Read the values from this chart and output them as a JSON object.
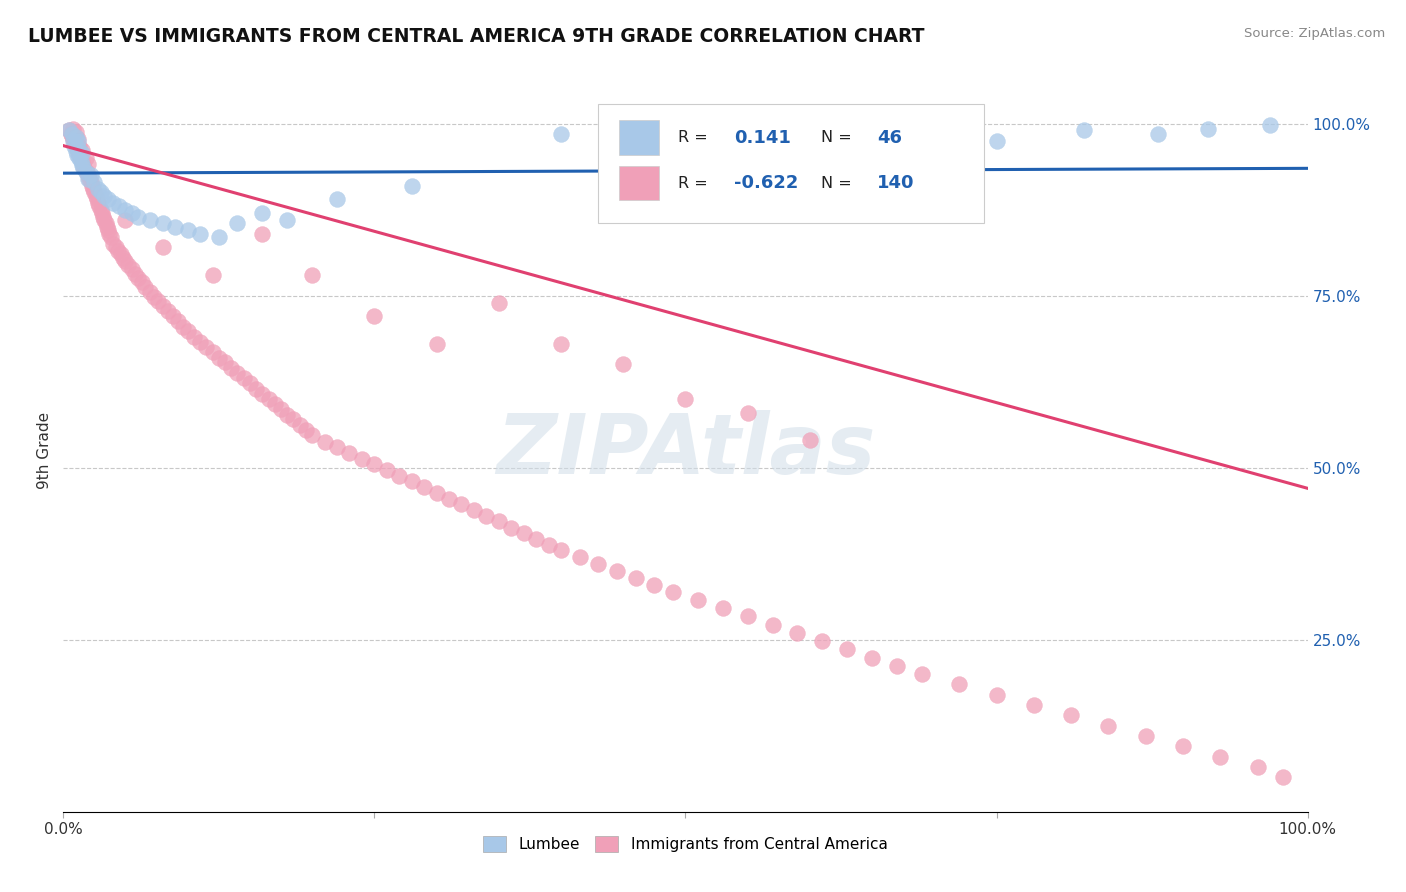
{
  "title": "LUMBEE VS IMMIGRANTS FROM CENTRAL AMERICA 9TH GRADE CORRELATION CHART",
  "source_text": "Source: ZipAtlas.com",
  "ylabel": "9th Grade",
  "xlim": [
    0.0,
    1.0
  ],
  "ylim": [
    0.0,
    1.05
  ],
  "lumbee_R": 0.141,
  "lumbee_N": 46,
  "ca_R": -0.622,
  "ca_N": 140,
  "lumbee_color": "#a8c8e8",
  "ca_color": "#f0a0b8",
  "lumbee_line_color": "#2060b0",
  "ca_line_color": "#e04070",
  "background_color": "#ffffff",
  "grid_color": "#c8c8c8",
  "watermark": "ZIPAtlas",
  "lumbee_trend_start": 0.928,
  "lumbee_trend_end": 0.935,
  "ca_trend_start": 0.968,
  "ca_trend_end": 0.47,
  "lumbee_x": [
    0.005,
    0.007,
    0.008,
    0.009,
    0.01,
    0.01,
    0.011,
    0.012,
    0.012,
    0.013,
    0.014,
    0.015,
    0.015,
    0.016,
    0.018,
    0.02,
    0.022,
    0.025,
    0.028,
    0.03,
    0.033,
    0.036,
    0.04,
    0.045,
    0.05,
    0.055,
    0.06,
    0.07,
    0.08,
    0.09,
    0.1,
    0.11,
    0.125,
    0.14,
    0.16,
    0.18,
    0.22,
    0.28,
    0.4,
    0.55,
    0.65,
    0.75,
    0.82,
    0.88,
    0.92,
    0.97
  ],
  "lumbee_y": [
    0.99,
    0.985,
    0.975,
    0.968,
    0.96,
    0.98,
    0.955,
    0.965,
    0.975,
    0.95,
    0.945,
    0.94,
    0.958,
    0.935,
    0.93,
    0.92,
    0.925,
    0.915,
    0.905,
    0.9,
    0.895,
    0.89,
    0.885,
    0.88,
    0.875,
    0.87,
    0.865,
    0.86,
    0.855,
    0.85,
    0.845,
    0.84,
    0.835,
    0.855,
    0.87,
    0.86,
    0.89,
    0.91,
    0.985,
    0.99,
    0.98,
    0.975,
    0.99,
    0.985,
    0.992,
    0.998
  ],
  "ca_x": [
    0.005,
    0.006,
    0.007,
    0.008,
    0.008,
    0.009,
    0.01,
    0.01,
    0.011,
    0.012,
    0.012,
    0.013,
    0.013,
    0.014,
    0.015,
    0.015,
    0.016,
    0.017,
    0.018,
    0.019,
    0.02,
    0.02,
    0.021,
    0.022,
    0.023,
    0.024,
    0.025,
    0.026,
    0.027,
    0.028,
    0.029,
    0.03,
    0.031,
    0.032,
    0.033,
    0.034,
    0.035,
    0.036,
    0.037,
    0.038,
    0.04,
    0.042,
    0.044,
    0.046,
    0.048,
    0.05,
    0.052,
    0.055,
    0.058,
    0.06,
    0.063,
    0.066,
    0.07,
    0.073,
    0.076,
    0.08,
    0.084,
    0.088,
    0.092,
    0.096,
    0.1,
    0.105,
    0.11,
    0.115,
    0.12,
    0.125,
    0.13,
    0.135,
    0.14,
    0.145,
    0.15,
    0.155,
    0.16,
    0.165,
    0.17,
    0.175,
    0.18,
    0.185,
    0.19,
    0.195,
    0.2,
    0.21,
    0.22,
    0.23,
    0.24,
    0.25,
    0.26,
    0.27,
    0.28,
    0.29,
    0.3,
    0.31,
    0.32,
    0.33,
    0.34,
    0.35,
    0.36,
    0.37,
    0.38,
    0.39,
    0.4,
    0.415,
    0.43,
    0.445,
    0.46,
    0.475,
    0.49,
    0.51,
    0.53,
    0.55,
    0.57,
    0.59,
    0.61,
    0.63,
    0.65,
    0.67,
    0.69,
    0.72,
    0.75,
    0.78,
    0.81,
    0.84,
    0.87,
    0.9,
    0.93,
    0.96,
    0.98,
    0.05,
    0.08,
    0.12,
    0.16,
    0.2,
    0.25,
    0.3,
    0.35,
    0.4,
    0.45,
    0.5,
    0.55,
    0.6
  ],
  "ca_y": [
    0.99,
    0.985,
    0.982,
    0.978,
    0.992,
    0.975,
    0.97,
    0.988,
    0.965,
    0.96,
    0.978,
    0.955,
    0.968,
    0.95,
    0.945,
    0.962,
    0.94,
    0.935,
    0.95,
    0.93,
    0.925,
    0.942,
    0.92,
    0.915,
    0.91,
    0.905,
    0.9,
    0.895,
    0.89,
    0.885,
    0.88,
    0.875,
    0.87,
    0.865,
    0.86,
    0.855,
    0.85,
    0.845,
    0.84,
    0.835,
    0.825,
    0.82,
    0.815,
    0.81,
    0.805,
    0.8,
    0.795,
    0.788,
    0.782,
    0.776,
    0.77,
    0.763,
    0.755,
    0.748,
    0.742,
    0.735,
    0.728,
    0.72,
    0.713,
    0.705,
    0.698,
    0.69,
    0.682,
    0.675,
    0.668,
    0.66,
    0.653,
    0.645,
    0.638,
    0.63,
    0.623,
    0.615,
    0.607,
    0.6,
    0.592,
    0.585,
    0.577,
    0.57,
    0.562,
    0.555,
    0.547,
    0.538,
    0.53,
    0.522,
    0.513,
    0.505,
    0.497,
    0.488,
    0.48,
    0.472,
    0.463,
    0.455,
    0.447,
    0.438,
    0.43,
    0.422,
    0.413,
    0.405,
    0.397,
    0.388,
    0.38,
    0.37,
    0.36,
    0.35,
    0.34,
    0.33,
    0.32,
    0.308,
    0.296,
    0.284,
    0.272,
    0.26,
    0.248,
    0.236,
    0.224,
    0.212,
    0.2,
    0.185,
    0.17,
    0.155,
    0.14,
    0.125,
    0.11,
    0.095,
    0.08,
    0.065,
    0.05,
    0.86,
    0.82,
    0.78,
    0.84,
    0.78,
    0.72,
    0.68,
    0.74,
    0.68,
    0.65,
    0.6,
    0.58,
    0.54
  ]
}
